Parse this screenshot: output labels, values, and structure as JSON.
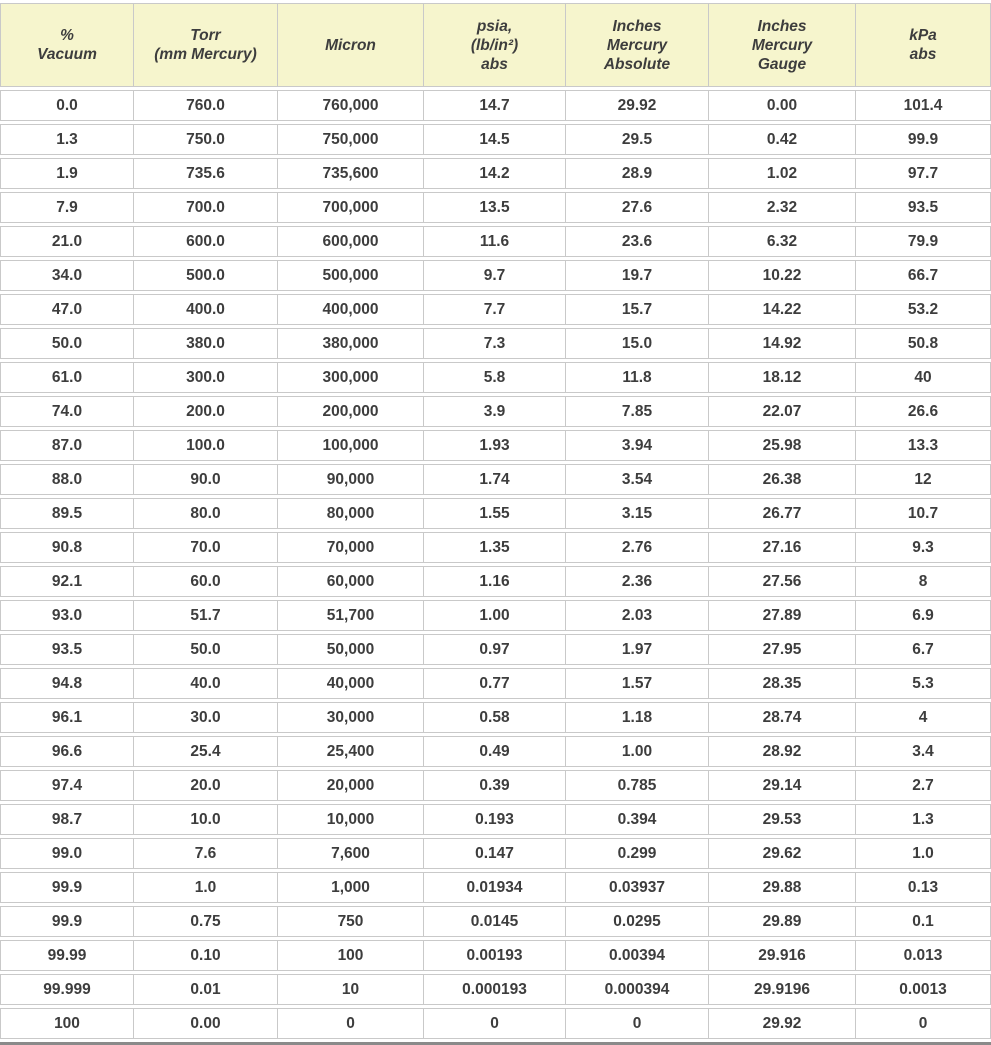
{
  "table": {
    "title": "vacuum-unit-conversion-table",
    "headers": [
      "%\nVacuum",
      "Torr\n(mm Mercury)",
      "Micron",
      "psia,\n(lb/in²)\nabs",
      "Inches\nMercury\nAbsolute",
      "Inches\nMercury\nGauge",
      "kPa\nabs"
    ],
    "rows": [
      [
        "0.0",
        "760.0",
        "760,000",
        "14.7",
        "29.92",
        "0.00",
        "101.4"
      ],
      [
        "1.3",
        "750.0",
        "750,000",
        "14.5",
        "29.5",
        "0.42",
        "99.9"
      ],
      [
        "1.9",
        "735.6",
        "735,600",
        "14.2",
        "28.9",
        "1.02",
        "97.7"
      ],
      [
        "7.9",
        "700.0",
        "700,000",
        "13.5",
        "27.6",
        "2.32",
        "93.5"
      ],
      [
        "21.0",
        "600.0",
        "600,000",
        "11.6",
        "23.6",
        "6.32",
        "79.9"
      ],
      [
        "34.0",
        "500.0",
        "500,000",
        "9.7",
        "19.7",
        "10.22",
        "66.7"
      ],
      [
        "47.0",
        "400.0",
        "400,000",
        "7.7",
        "15.7",
        "14.22",
        "53.2"
      ],
      [
        "50.0",
        "380.0",
        "380,000",
        "7.3",
        "15.0",
        "14.92",
        "50.8"
      ],
      [
        "61.0",
        "300.0",
        "300,000",
        "5.8",
        "11.8",
        "18.12",
        "40"
      ],
      [
        "74.0",
        "200.0",
        "200,000",
        "3.9",
        "7.85",
        "22.07",
        "26.6"
      ],
      [
        "87.0",
        "100.0",
        "100,000",
        "1.93",
        "3.94",
        "25.98",
        "13.3"
      ],
      [
        "88.0",
        "90.0",
        "90,000",
        "1.74",
        "3.54",
        "26.38",
        "12"
      ],
      [
        "89.5",
        "80.0",
        "80,000",
        "1.55",
        "3.15",
        "26.77",
        "10.7"
      ],
      [
        "90.8",
        "70.0",
        "70,000",
        "1.35",
        "2.76",
        "27.16",
        "9.3"
      ],
      [
        "92.1",
        "60.0",
        "60,000",
        "1.16",
        "2.36",
        "27.56",
        "8"
      ],
      [
        "93.0",
        "51.7",
        "51,700",
        "1.00",
        "2.03",
        "27.89",
        "6.9"
      ],
      [
        "93.5",
        "50.0",
        "50,000",
        "0.97",
        "1.97",
        "27.95",
        "6.7"
      ],
      [
        "94.8",
        "40.0",
        "40,000",
        "0.77",
        "1.57",
        "28.35",
        "5.3"
      ],
      [
        "96.1",
        "30.0",
        "30,000",
        "0.58",
        "1.18",
        "28.74",
        "4"
      ],
      [
        "96.6",
        "25.4",
        "25,400",
        "0.49",
        "1.00",
        "28.92",
        "3.4"
      ],
      [
        "97.4",
        "20.0",
        "20,000",
        "0.39",
        "0.785",
        "29.14",
        "2.7"
      ],
      [
        "98.7",
        "10.0",
        "10,000",
        "0.193",
        "0.394",
        "29.53",
        "1.3"
      ],
      [
        "99.0",
        "7.6",
        "7,600",
        "0.147",
        "0.299",
        "29.62",
        "1.0"
      ],
      [
        "99.9",
        "1.0",
        "1,000",
        "0.01934",
        "0.03937",
        "29.88",
        "0.13"
      ],
      [
        "99.9",
        "0.75",
        "750",
        "0.0145",
        "0.0295",
        "29.89",
        "0.1"
      ],
      [
        "99.99",
        "0.10",
        "100",
        "0.00193",
        "0.00394",
        "29.916",
        "0.013"
      ],
      [
        "99.999",
        "0.01",
        "10",
        "0.000193",
        "0.000394",
        "29.9196",
        "0.0013"
      ],
      [
        "100",
        "0.00",
        "0",
        "0",
        "0",
        "29.92",
        "0"
      ]
    ]
  },
  "colors": {
    "header_bg": "#f6f5cd",
    "grid_line": "#c9c9c9",
    "text": "#3d3d3d",
    "bottom_border": "#8a8a8a"
  }
}
